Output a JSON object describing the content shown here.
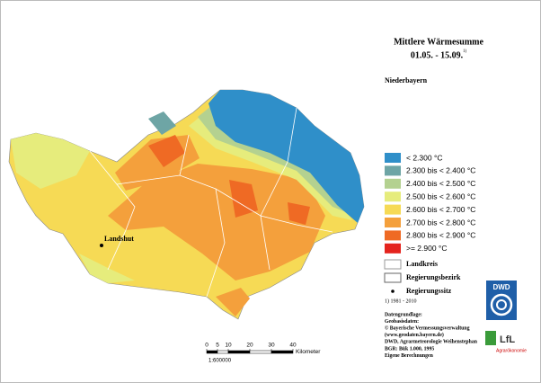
{
  "title": "Mittlere Wärmesumme",
  "subtitle": "01.05. - 15.09.",
  "subtitle_note": "1)",
  "region": "Niederbayern",
  "legend": [
    {
      "label": "< 2.300 °C",
      "color": "#2f8fc9"
    },
    {
      "label": "2.300 bis < 2.400 °C",
      "color": "#6ea5a5"
    },
    {
      "label": "2.400 bis < 2.500 °C",
      "color": "#b4d190"
    },
    {
      "label": "2.500 bis < 2.600 °C",
      "color": "#e6ec7c"
    },
    {
      "label": "2.600 bis < 2.700 °C",
      "color": "#f6da55"
    },
    {
      "label": "2.700 bis < 2.800 °C",
      "color": "#f4a03c"
    },
    {
      "label": "2.800 bis < 2.900 °C",
      "color": "#ef6a24"
    },
    {
      "label": ">= 2.900 °C",
      "color": "#e4231d"
    }
  ],
  "boundary_legend": [
    "Landkreis",
    "Regierungsbezirk",
    "Regierungssitz"
  ],
  "footnote": "1) 1981 - 2010",
  "sources": [
    "Datengrundlage:",
    "Geobasisdaten:",
    "© Bayerische Vermessungsverwaltung",
    "(www.geodaten.bayern.de)",
    "DWD, Agrarmeteorologie Weihenstephan",
    "BGR: Bük 1.000, 1995",
    "Eigene Berechnungen"
  ],
  "city": "Landshut",
  "scale": {
    "ticks": [
      0,
      5,
      10,
      20,
      30,
      40
    ],
    "unit": "Kilometer",
    "ratio": "1:600000"
  },
  "logos": {
    "dwd": "DWD",
    "lfl": "LfL",
    "lfl_sub": "Agrarökonomie"
  }
}
